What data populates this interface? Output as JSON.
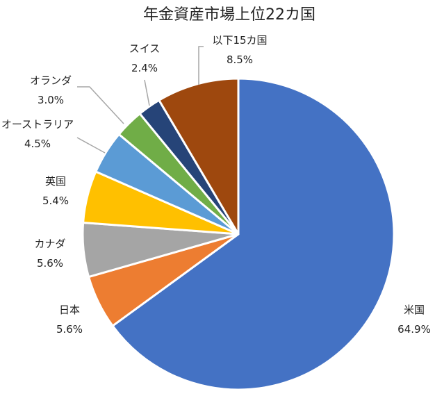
{
  "chart_data": {
    "type": "pie",
    "title": "年金資産市場上位22カ国",
    "categories": [
      "米国",
      "日本",
      "カナダ",
      "英国",
      "オーストラリア",
      "オランダ",
      "スイス",
      "以下15カ国"
    ],
    "values": [
      64.9,
      5.6,
      5.6,
      5.4,
      4.5,
      3.0,
      2.4,
      8.5
    ],
    "value_labels": [
      "64.9%",
      "5.6%",
      "5.6%",
      "5.4%",
      "4.5%",
      "3.0%",
      "2.4%",
      "8.5%"
    ],
    "colors": [
      "#4472C4",
      "#ED7D31",
      "#A5A5A5",
      "#FFC000",
      "#5B9BD5",
      "#70AD47",
      "#264478",
      "#9E480E"
    ],
    "start": "12 o'clock",
    "direction": "clockwise",
    "legend": "none",
    "leader_lines": [
      "オーストラリア",
      "オランダ",
      "スイス",
      "以下15カ国"
    ]
  }
}
